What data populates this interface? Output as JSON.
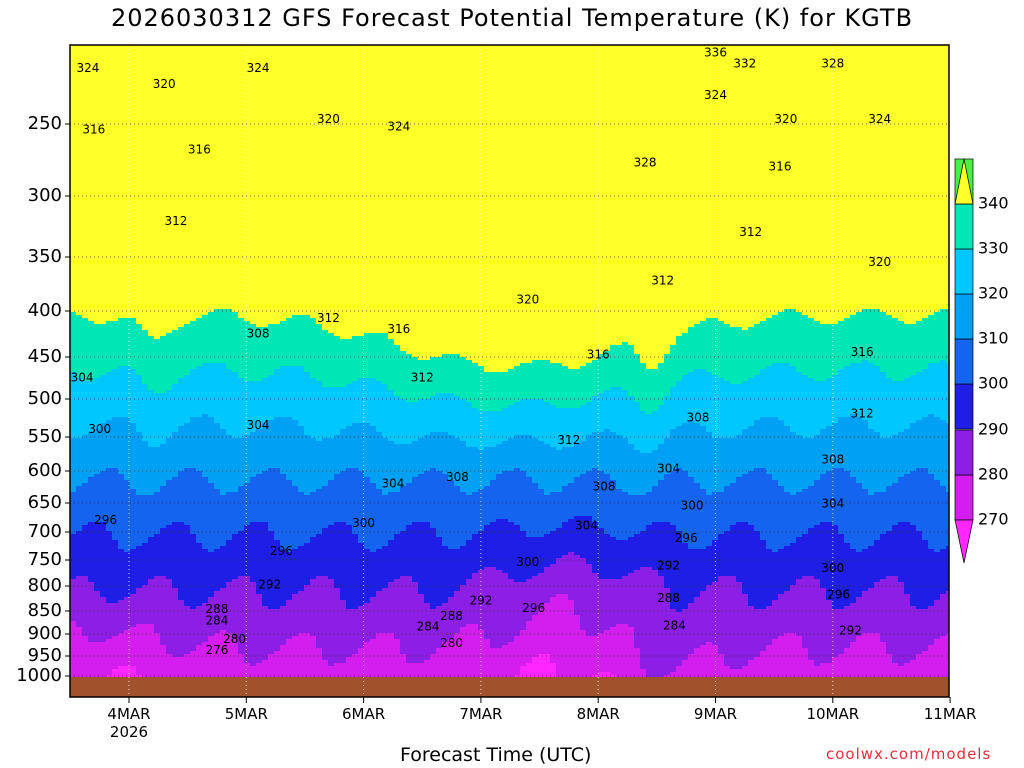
{
  "title": "2026030312 GFS Forecast Potential Temperature (K) for KGTB",
  "xlabel": "Forecast Time (UTC)",
  "credit": "coolwx.com/models",
  "chart_data": {
    "type": "heatmap",
    "title": "2026030312 GFS Forecast Potential Temperature (K) for KGTB",
    "xlabel": "Forecast Time (UTC)",
    "ylabel": "",
    "x_ticks": [
      "4MAR",
      "5MAR",
      "6MAR",
      "7MAR",
      "8MAR",
      "9MAR",
      "10MAR",
      "11MAR"
    ],
    "x_tick_sublabel": "2026",
    "x_range": [
      "2026-03-03T12",
      "2026-03-11T00"
    ],
    "y_ticks": [
      250,
      300,
      350,
      400,
      450,
      500,
      550,
      600,
      650,
      700,
      750,
      800,
      850,
      900,
      950,
      1000
    ],
    "y_range": [
      200,
      1000
    ],
    "y_scale": "pressure (reversed, log-like)",
    "grid": true,
    "colorbar": {
      "levels": [
        270,
        280,
        290,
        300,
        310,
        320,
        330,
        340
      ],
      "colors": [
        "#ff26ff",
        "#d41ef0",
        "#8c1ee6",
        "#1e1ee6",
        "#1464f0",
        "#00a0f5",
        "#00c8ff",
        "#00e6b4",
        "#46f046",
        "#ffff28"
      ]
    },
    "contour_labels": [
      {
        "v": "324",
        "day": 3.65,
        "p": 215
      },
      {
        "v": "320",
        "day": 4.3,
        "p": 225
      },
      {
        "v": "324",
        "day": 5.1,
        "p": 215
      },
      {
        "v": "316",
        "day": 3.7,
        "p": 254
      },
      {
        "v": "316",
        "day": 4.6,
        "p": 268
      },
      {
        "v": "320",
        "day": 5.7,
        "p": 247
      },
      {
        "v": "324",
        "day": 6.3,
        "p": 252
      },
      {
        "v": "312",
        "day": 4.4,
        "p": 321
      },
      {
        "v": "308",
        "day": 5.1,
        "p": 425
      },
      {
        "v": "312",
        "day": 5.7,
        "p": 408
      },
      {
        "v": "316",
        "day": 6.3,
        "p": 420
      },
      {
        "v": "304",
        "day": 3.6,
        "p": 475
      },
      {
        "v": "312",
        "day": 6.5,
        "p": 475
      },
      {
        "v": "304",
        "day": 5.1,
        "p": 535
      },
      {
        "v": "300",
        "day": 3.75,
        "p": 540
      },
      {
        "v": "320",
        "day": 7.4,
        "p": 390
      },
      {
        "v": "316",
        "day": 8.0,
        "p": 448
      },
      {
        "v": "312",
        "day": 7.75,
        "p": 555
      },
      {
        "v": "304",
        "day": 6.25,
        "p": 620
      },
      {
        "v": "308",
        "day": 6.8,
        "p": 610
      },
      {
        "v": "308",
        "day": 8.05,
        "p": 625
      },
      {
        "v": "296",
        "day": 3.8,
        "p": 680
      },
      {
        "v": "300",
        "day": 6.0,
        "p": 685
      },
      {
        "v": "304",
        "day": 7.9,
        "p": 690
      },
      {
        "v": "296",
        "day": 5.3,
        "p": 735
      },
      {
        "v": "300",
        "day": 7.4,
        "p": 755
      },
      {
        "v": "292",
        "day": 5.2,
        "p": 798
      },
      {
        "v": "292",
        "day": 7.0,
        "p": 830
      },
      {
        "v": "296",
        "day": 7.45,
        "p": 845
      },
      {
        "v": "288",
        "day": 4.75,
        "p": 847
      },
      {
        "v": "284",
        "day": 4.75,
        "p": 872
      },
      {
        "v": "288",
        "day": 6.75,
        "p": 862
      },
      {
        "v": "284",
        "day": 6.55,
        "p": 885
      },
      {
        "v": "280",
        "day": 4.9,
        "p": 912
      },
      {
        "v": "280",
        "day": 6.75,
        "p": 922
      },
      {
        "v": "276",
        "day": 4.75,
        "p": 938
      },
      {
        "v": "312",
        "day": 8.55,
        "p": 372
      },
      {
        "v": "312",
        "day": 9.3,
        "p": 330
      },
      {
        "v": "316",
        "day": 9.55,
        "p": 280
      },
      {
        "v": "320",
        "day": 9.6,
        "p": 247
      },
      {
        "v": "324",
        "day": 9.0,
        "p": 232
      },
      {
        "v": "328",
        "day": 8.4,
        "p": 277
      },
      {
        "v": "324",
        "day": 10.4,
        "p": 247
      },
      {
        "v": "320",
        "day": 10.4,
        "p": 355
      },
      {
        "v": "328",
        "day": 10.0,
        "p": 212
      },
      {
        "v": "332",
        "day": 9.25,
        "p": 212
      },
      {
        "v": "336",
        "day": 9.0,
        "p": 205
      },
      {
        "v": "308",
        "day": 8.85,
        "p": 525
      },
      {
        "v": "304",
        "day": 8.6,
        "p": 597
      },
      {
        "v": "308",
        "day": 10.0,
        "p": 584
      },
      {
        "v": "312",
        "day": 10.25,
        "p": 520
      },
      {
        "v": "316",
        "day": 10.25,
        "p": 445
      },
      {
        "v": "304",
        "day": 10.0,
        "p": 652
      },
      {
        "v": "300",
        "day": 8.8,
        "p": 655
      },
      {
        "v": "296",
        "day": 8.75,
        "p": 712
      },
      {
        "v": "292",
        "day": 8.6,
        "p": 762
      },
      {
        "v": "288",
        "day": 8.6,
        "p": 825
      },
      {
        "v": "284",
        "day": 8.65,
        "p": 883
      },
      {
        "v": "300",
        "day": 10.0,
        "p": 766
      },
      {
        "v": "296",
        "day": 10.05,
        "p": 818
      },
      {
        "v": "292",
        "day": 10.15,
        "p": 893
      }
    ]
  }
}
